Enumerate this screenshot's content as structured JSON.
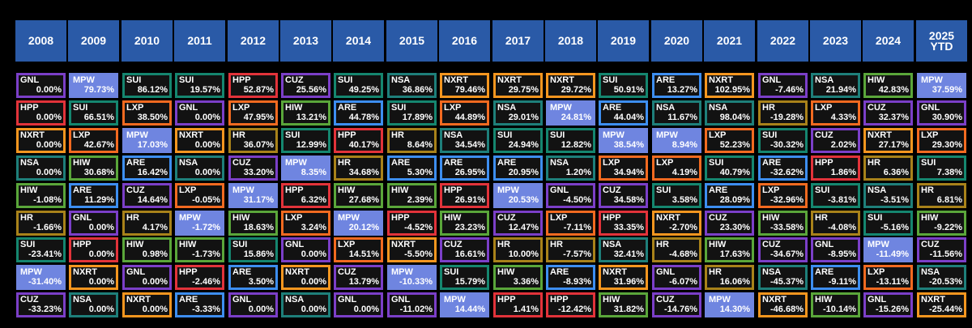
{
  "chart_data": {
    "type": "table",
    "years": [
      "2008",
      "2009",
      "2010",
      "2011",
      "2012",
      "2013",
      "2014",
      "2015",
      "2016",
      "2017",
      "2018",
      "2019",
      "2020",
      "2021",
      "2022",
      "2023",
      "2024",
      "2025\nYTD"
    ],
    "ticker_colors": {
      "GNL": "#7b3fc8",
      "MPW": "#6f85e0",
      "SUI": "#15866f",
      "HPP": "#e2333a",
      "CUZ": "#7b3fc8",
      "NSA": "#1e7f7a",
      "NXRT": "#f5961f",
      "ARE": "#3d8ef0",
      "HIW": "#5aa63a",
      "LXP": "#f26a20",
      "HR": "#a8821a"
    },
    "highlight_fill": "#6f85e0",
    "columns": [
      [
        [
          "GNL",
          "0.00%"
        ],
        [
          "HPP",
          "0.00%"
        ],
        [
          "NXRT",
          "0.00%"
        ],
        [
          "NSA",
          "0.00%"
        ],
        [
          "HIW",
          "-1.08%"
        ],
        [
          "HR",
          "-1.66%"
        ],
        [
          "SUI",
          "-23.41%"
        ],
        [
          "MPW",
          "-31.40%"
        ],
        [
          "CUZ",
          "-33.23%"
        ]
      ],
      [
        [
          "MPW",
          "79.73%"
        ],
        [
          "SUI",
          "66.51%"
        ],
        [
          "LXP",
          "42.67%"
        ],
        [
          "HIW",
          "30.68%"
        ],
        [
          "ARE",
          "11.29%"
        ],
        [
          "GNL",
          "0.00%"
        ],
        [
          "HPP",
          "0.00%"
        ],
        [
          "NXRT",
          "0.00%"
        ],
        [
          "NSA",
          "0.00%"
        ]
      ],
      [
        [
          "SUI",
          "86.12%"
        ],
        [
          "LXP",
          "38.50%"
        ],
        [
          "MPW",
          "17.03%"
        ],
        [
          "ARE",
          "16.42%"
        ],
        [
          "CUZ",
          "14.64%"
        ],
        [
          "HR",
          "4.17%"
        ],
        [
          "HIW",
          "0.98%"
        ],
        [
          "GNL",
          "0.00%"
        ],
        [
          "NXRT",
          "0.00%"
        ]
      ],
      [
        [
          "SUI",
          "19.57%"
        ],
        [
          "GNL",
          "0.00%"
        ],
        [
          "NXRT",
          "0.00%"
        ],
        [
          "NSA",
          "0.00%"
        ],
        [
          "LXP",
          "-0.05%"
        ],
        [
          "MPW",
          "-1.72%"
        ],
        [
          "HIW",
          "-1.73%"
        ],
        [
          "HPP",
          "-2.46%"
        ],
        [
          "ARE",
          "-3.33%"
        ]
      ],
      [
        [
          "HPP",
          "52.87%"
        ],
        [
          "LXP",
          "47.95%"
        ],
        [
          "HR",
          "36.07%"
        ],
        [
          "CUZ",
          "33.20%"
        ],
        [
          "MPW",
          "31.17%"
        ],
        [
          "HIW",
          "18.63%"
        ],
        [
          "SUI",
          "15.86%"
        ],
        [
          "ARE",
          "3.50%"
        ],
        [
          "GNL",
          "0.00%"
        ]
      ],
      [
        [
          "CUZ",
          "25.56%"
        ],
        [
          "HIW",
          "13.21%"
        ],
        [
          "SUI",
          "12.99%"
        ],
        [
          "MPW",
          "8.35%"
        ],
        [
          "HPP",
          "6.32%"
        ],
        [
          "LXP",
          "3.24%"
        ],
        [
          "GNL",
          "0.00%"
        ],
        [
          "NXRT",
          "0.00%"
        ],
        [
          "NSA",
          "0.00%"
        ]
      ],
      [
        [
          "SUI",
          "49.25%"
        ],
        [
          "ARE",
          "44.78%"
        ],
        [
          "HPP",
          "40.17%"
        ],
        [
          "HR",
          "34.68%"
        ],
        [
          "HIW",
          "27.68%"
        ],
        [
          "MPW",
          "20.12%"
        ],
        [
          "LXP",
          "14.51%"
        ],
        [
          "CUZ",
          "13.79%"
        ],
        [
          "GNL",
          "0.00%"
        ]
      ],
      [
        [
          "NSA",
          "36.86%"
        ],
        [
          "SUI",
          "17.89%"
        ],
        [
          "HR",
          "8.64%"
        ],
        [
          "ARE",
          "5.30%"
        ],
        [
          "HIW",
          "2.39%"
        ],
        [
          "HPP",
          "-4.52%"
        ],
        [
          "NXRT",
          "-5.50%"
        ],
        [
          "MPW",
          "-10.33%"
        ],
        [
          "GNL",
          "-11.02%"
        ]
      ],
      [
        [
          "NXRT",
          "79.46%"
        ],
        [
          "LXP",
          "44.89%"
        ],
        [
          "NSA",
          "34.54%"
        ],
        [
          "ARE",
          "26.95%"
        ],
        [
          "HPP",
          "26.91%"
        ],
        [
          "HIW",
          "23.23%"
        ],
        [
          "CUZ",
          "16.61%"
        ],
        [
          "SUI",
          "15.79%"
        ],
        [
          "MPW",
          "14.44%"
        ]
      ],
      [
        [
          "NXRT",
          "29.75%"
        ],
        [
          "NSA",
          "29.01%"
        ],
        [
          "SUI",
          "24.94%"
        ],
        [
          "ARE",
          "20.95%"
        ],
        [
          "MPW",
          "20.53%"
        ],
        [
          "CUZ",
          "12.47%"
        ],
        [
          "HR",
          "10.00%"
        ],
        [
          "HIW",
          "3.36%"
        ],
        [
          "HPP",
          "1.41%"
        ]
      ],
      [
        [
          "NXRT",
          "29.72%"
        ],
        [
          "MPW",
          "24.81%"
        ],
        [
          "SUI",
          "12.82%"
        ],
        [
          "NSA",
          "1.20%"
        ],
        [
          "GNL",
          "-4.50%"
        ],
        [
          "LXP",
          "-7.11%"
        ],
        [
          "HR",
          "-7.57%"
        ],
        [
          "ARE",
          "-8.93%"
        ],
        [
          "HPP",
          "-12.42%"
        ]
      ],
      [
        [
          "SUI",
          "50.91%"
        ],
        [
          "ARE",
          "44.04%"
        ],
        [
          "MPW",
          "38.54%"
        ],
        [
          "LXP",
          "34.94%"
        ],
        [
          "CUZ",
          "34.58%"
        ],
        [
          "HPP",
          "33.35%"
        ],
        [
          "NSA",
          "32.41%"
        ],
        [
          "NXRT",
          "31.96%"
        ],
        [
          "HIW",
          "31.82%"
        ]
      ],
      [
        [
          "ARE",
          "13.27%"
        ],
        [
          "NSA",
          "11.67%"
        ],
        [
          "MPW",
          "8.94%"
        ],
        [
          "LXP",
          "4.19%"
        ],
        [
          "SUI",
          "3.58%"
        ],
        [
          "NXRT",
          "-2.70%"
        ],
        [
          "HR",
          "-4.68%"
        ],
        [
          "GNL",
          "-6.07%"
        ],
        [
          "CUZ",
          "-14.76%"
        ]
      ],
      [
        [
          "NXRT",
          "102.95%"
        ],
        [
          "NSA",
          "98.04%"
        ],
        [
          "LXP",
          "52.23%"
        ],
        [
          "SUI",
          "40.79%"
        ],
        [
          "ARE",
          "28.09%"
        ],
        [
          "CUZ",
          "23.30%"
        ],
        [
          "HIW",
          "17.63%"
        ],
        [
          "HR",
          "16.06%"
        ],
        [
          "MPW",
          "14.30%"
        ]
      ],
      [
        [
          "GNL",
          "-7.46%"
        ],
        [
          "HR",
          "-19.28%"
        ],
        [
          "SUI",
          "-30.32%"
        ],
        [
          "ARE",
          "-32.62%"
        ],
        [
          "LXP",
          "-32.96%"
        ],
        [
          "HIW",
          "-33.58%"
        ],
        [
          "CUZ",
          "-34.67%"
        ],
        [
          "NSA",
          "-45.37%"
        ],
        [
          "NXRT",
          "-46.68%"
        ]
      ],
      [
        [
          "NSA",
          "21.94%"
        ],
        [
          "LXP",
          "4.33%"
        ],
        [
          "CUZ",
          "2.02%"
        ],
        [
          "HPP",
          "1.86%"
        ],
        [
          "SUI",
          "-3.81%"
        ],
        [
          "HR",
          "-4.08%"
        ],
        [
          "GNL",
          "-8.95%"
        ],
        [
          "ARE",
          "-9.11%"
        ],
        [
          "HIW",
          "-10.14%"
        ]
      ],
      [
        [
          "HIW",
          "42.83%"
        ],
        [
          "CUZ",
          "32.37%"
        ],
        [
          "NXRT",
          "27.17%"
        ],
        [
          "HR",
          "6.36%"
        ],
        [
          "NSA",
          "-3.51%"
        ],
        [
          "SUI",
          "-5.16%"
        ],
        [
          "MPW",
          "-11.49%"
        ],
        [
          "LXP",
          "-13.11%"
        ],
        [
          "GNL",
          "-15.26%"
        ]
      ],
      [
        [
          "MPW",
          "37.59%"
        ],
        [
          "GNL",
          "30.90%"
        ],
        [
          "LXP",
          "29.30%"
        ],
        [
          "SUI",
          "7.38%"
        ],
        [
          "HR",
          "6.81%"
        ],
        [
          "HIW",
          "-9.22%"
        ],
        [
          "CUZ",
          "-11.56%"
        ],
        [
          "NSA",
          "-20.53%"
        ],
        [
          "NXRT",
          "-25.44%"
        ]
      ]
    ]
  }
}
